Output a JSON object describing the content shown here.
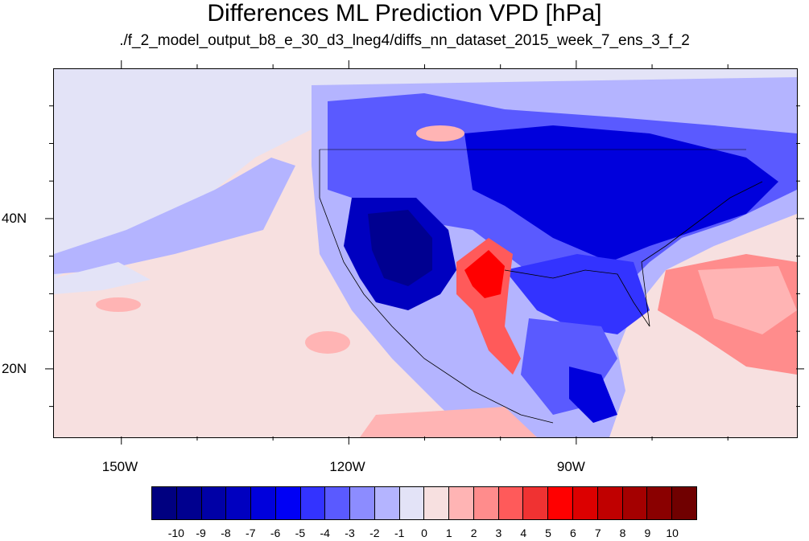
{
  "title": "Differences ML Prediction VPD [hPa]",
  "subtitle": "./f_2_model_output_b8_e_30_d3_lneg4/diffs_nn_dataset_2015_week_7_ens_3_f_2",
  "map": {
    "lon_range": [
      -159,
      -61
    ],
    "lat_range": [
      11,
      60
    ],
    "lon_ticks": [
      {
        "value": -150,
        "label": "150W"
      },
      {
        "value": -120,
        "label": "120W"
      },
      {
        "value": -90,
        "label": "90W"
      }
    ],
    "lat_ticks": [
      {
        "value": 40,
        "label": "40N"
      },
      {
        "value": 20,
        "label": "20N"
      }
    ]
  },
  "colorbar": {
    "labels": [
      "-10",
      "-9",
      "-8",
      "-7",
      "-6",
      "-5",
      "-4",
      "-3",
      "-2",
      "-1",
      "0",
      "1",
      "2",
      "3",
      "4",
      "5",
      "6",
      "7",
      "8",
      "9",
      "10"
    ],
    "colors": [
      "#000080",
      "#00008f",
      "#0000a6",
      "#0000c0",
      "#0000dc",
      "#0000f5",
      "#3333ff",
      "#5a5aff",
      "#8c8cff",
      "#b4b4ff",
      "#e3e3f7",
      "#f7e0e0",
      "#ffb4b4",
      "#ff8c8c",
      "#ff5a5a",
      "#f03232",
      "#ff0000",
      "#dc0000",
      "#c00000",
      "#a40000",
      "#8a0000",
      "#700000"
    ]
  }
}
